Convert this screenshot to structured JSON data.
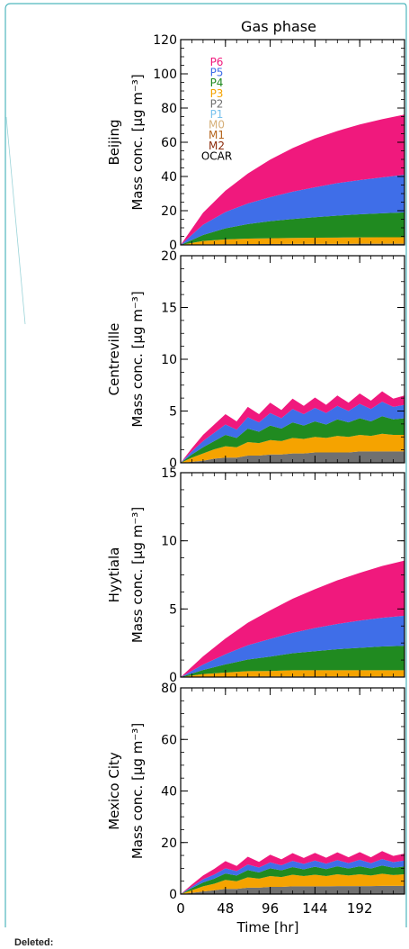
{
  "footer": {
    "deleted_label": "Deleted:"
  },
  "chart_data": {
    "type": "area",
    "title": "Gas phase",
    "xlabel": "Time [hr]",
    "x_ticks": [
      0,
      48,
      96,
      144,
      192
    ],
    "xlim": [
      0,
      240
    ],
    "legend": {
      "placement": "top-left (top panel)",
      "entries": [
        {
          "name": "P6",
          "color": "#f0197d"
        },
        {
          "name": "P5",
          "color": "#3f6ee8"
        },
        {
          "name": "P4",
          "color": "#208a20"
        },
        {
          "name": "P3",
          "color": "#f5a300"
        },
        {
          "name": "P2",
          "color": "#707070"
        },
        {
          "name": "P1",
          "color": "#7ac3ee"
        },
        {
          "name": "M0",
          "color": "#d6b07a"
        },
        {
          "name": "M1",
          "color": "#b5651d"
        },
        {
          "name": "M2",
          "color": "#8b2a0a"
        },
        {
          "name": "OCAR",
          "color": "#000000"
        }
      ]
    },
    "panels": [
      {
        "site": "Beijing",
        "ylabel": "Mass conc. [μg m⁻³]",
        "ylim": [
          0,
          120
        ],
        "y_ticks": [
          0,
          20,
          40,
          60,
          80,
          100,
          120
        ],
        "x": [
          0,
          24,
          48,
          72,
          96,
          120,
          144,
          168,
          192,
          216,
          240
        ],
        "series": [
          {
            "name": "P2",
            "values": [
              0,
              0.3,
              0.4,
              0.5,
              0.5,
              0.6,
              0.6,
              0.6,
              0.7,
              0.7,
              0.7
            ]
          },
          {
            "name": "P3",
            "values": [
              0,
              2.0,
              2.8,
              3.2,
              3.4,
              3.5,
              3.6,
              3.7,
              3.7,
              3.8,
              3.8
            ]
          },
          {
            "name": "P4",
            "values": [
              0,
              3.5,
              6.5,
              8.5,
              10.0,
              11.0,
              12.0,
              12.8,
              13.5,
              14.0,
              14.5
            ]
          },
          {
            "name": "P5",
            "values": [
              0,
              6.0,
              9.5,
              12.0,
              14.0,
              16.0,
              17.5,
              19.0,
              20.0,
              21.0,
              22.0
            ]
          },
          {
            "name": "P6",
            "values": [
              0,
              7.0,
              12.5,
              17.5,
              22.0,
              25.5,
              28.5,
              30.5,
              32.5,
              34.0,
              35.2
            ]
          }
        ]
      },
      {
        "site": "Centreville",
        "ylabel": "Mass conc. [μg m⁻³]",
        "ylim": [
          0,
          20
        ],
        "y_ticks": [
          0,
          5,
          10,
          15,
          20
        ],
        "x": [
          0,
          12,
          24,
          36,
          48,
          60,
          72,
          84,
          96,
          108,
          120,
          132,
          144,
          156,
          168,
          180,
          192,
          204,
          216,
          228,
          240
        ],
        "series": [
          {
            "name": "P2",
            "values": [
              0,
              0.1,
              0.2,
              0.4,
              0.5,
              0.5,
              0.7,
              0.7,
              0.8,
              0.8,
              0.9,
              0.9,
              1.0,
              1.0,
              1.0,
              1.0,
              1.1,
              1.1,
              1.1,
              1.1,
              1.1
            ]
          },
          {
            "name": "P3",
            "values": [
              0,
              0.4,
              0.7,
              0.9,
              1.1,
              1.0,
              1.3,
              1.2,
              1.4,
              1.3,
              1.5,
              1.4,
              1.5,
              1.4,
              1.6,
              1.5,
              1.6,
              1.5,
              1.7,
              1.6,
              1.6
            ]
          },
          {
            "name": "P4",
            "values": [
              0,
              0.3,
              0.6,
              0.8,
              1.1,
              0.9,
              1.3,
              1.1,
              1.4,
              1.2,
              1.5,
              1.3,
              1.5,
              1.3,
              1.6,
              1.4,
              1.6,
              1.4,
              1.7,
              1.5,
              1.6
            ]
          },
          {
            "name": "P5",
            "values": [
              0,
              0.3,
              0.6,
              0.8,
              1.0,
              0.8,
              1.1,
              0.9,
              1.2,
              1.0,
              1.3,
              1.1,
              1.3,
              1.1,
              1.3,
              1.1,
              1.4,
              1.2,
              1.4,
              1.2,
              1.3
            ]
          },
          {
            "name": "P6",
            "values": [
              0,
              0.3,
              0.6,
              0.8,
              1.0,
              0.8,
              1.0,
              0.8,
              1.0,
              0.8,
              1.0,
              0.8,
              1.0,
              0.8,
              1.0,
              0.8,
              1.0,
              0.8,
              1.0,
              0.8,
              0.9
            ]
          }
        ]
      },
      {
        "site": "Hyytiala",
        "ylabel": "Mass conc. [μg m⁻³]",
        "ylim": [
          0,
          15
        ],
        "y_ticks": [
          0,
          5,
          10,
          15
        ],
        "x": [
          0,
          24,
          48,
          72,
          96,
          120,
          144,
          168,
          192,
          216,
          240
        ],
        "series": [
          {
            "name": "P2",
            "values": [
              0,
              0.02,
              0.03,
              0.04,
              0.05,
              0.05,
              0.05,
              0.05,
              0.05,
              0.05,
              0.05
            ]
          },
          {
            "name": "P3",
            "values": [
              0,
              0.2,
              0.3,
              0.4,
              0.4,
              0.45,
              0.45,
              0.45,
              0.45,
              0.45,
              0.45
            ]
          },
          {
            "name": "P4",
            "values": [
              0,
              0.3,
              0.6,
              0.85,
              1.05,
              1.25,
              1.4,
              1.55,
              1.65,
              1.75,
              1.8
            ]
          },
          {
            "name": "P5",
            "values": [
              0,
              0.4,
              0.75,
              1.05,
              1.3,
              1.5,
              1.7,
              1.85,
              2.0,
              2.1,
              2.2
            ]
          },
          {
            "name": "P6",
            "values": [
              0,
              0.6,
              1.15,
              1.65,
              2.1,
              2.5,
              2.85,
              3.2,
              3.5,
              3.8,
              4.05
            ]
          }
        ]
      },
      {
        "site": "Mexico City",
        "ylabel": "Mass conc. [μg m⁻³]",
        "ylim": [
          0,
          80
        ],
        "y_ticks": [
          0,
          20,
          40,
          60,
          80
        ],
        "x": [
          0,
          12,
          24,
          36,
          48,
          60,
          72,
          84,
          96,
          108,
          120,
          132,
          144,
          156,
          168,
          180,
          192,
          204,
          216,
          228,
          240
        ],
        "series": [
          {
            "name": "P2",
            "values": [
              0,
              0.5,
              1.0,
              1.5,
              2.0,
              2.0,
              2.5,
              2.5,
              2.8,
              2.8,
              3.0,
              3.0,
              3.0,
              3.0,
              3.1,
              3.1,
              3.1,
              3.1,
              3.2,
              3.2,
              3.2
            ]
          },
          {
            "name": "P3",
            "values": [
              0,
              1.0,
              2.0,
              2.5,
              3.5,
              3.0,
              4.0,
              3.5,
              4.2,
              3.8,
              4.5,
              4.0,
              4.5,
              4.0,
              4.6,
              4.1,
              4.6,
              4.1,
              4.7,
              4.2,
              4.5
            ]
          },
          {
            "name": "P4",
            "values": [
              0,
              0.8,
              1.5,
              2.0,
              2.5,
              2.2,
              2.8,
              2.4,
              3.0,
              2.6,
              3.0,
              2.6,
              3.1,
              2.7,
              3.1,
              2.7,
              3.1,
              2.7,
              3.2,
              2.8,
              3.0
            ]
          },
          {
            "name": "P5",
            "values": [
              0,
              0.6,
              1.2,
              1.6,
              2.0,
              1.7,
              2.2,
              1.9,
              2.3,
              2.0,
              2.4,
              2.1,
              2.4,
              2.1,
              2.4,
              2.1,
              2.5,
              2.1,
              2.5,
              2.2,
              2.3
            ]
          },
          {
            "name": "P6",
            "values": [
              0,
              0.8,
              1.5,
              2.2,
              2.8,
              2.0,
              3.0,
              2.2,
              3.0,
              2.3,
              3.0,
              2.3,
              3.0,
              2.3,
              3.0,
              2.3,
              3.0,
              2.3,
              3.1,
              2.4,
              2.7
            ]
          }
        ]
      }
    ]
  }
}
